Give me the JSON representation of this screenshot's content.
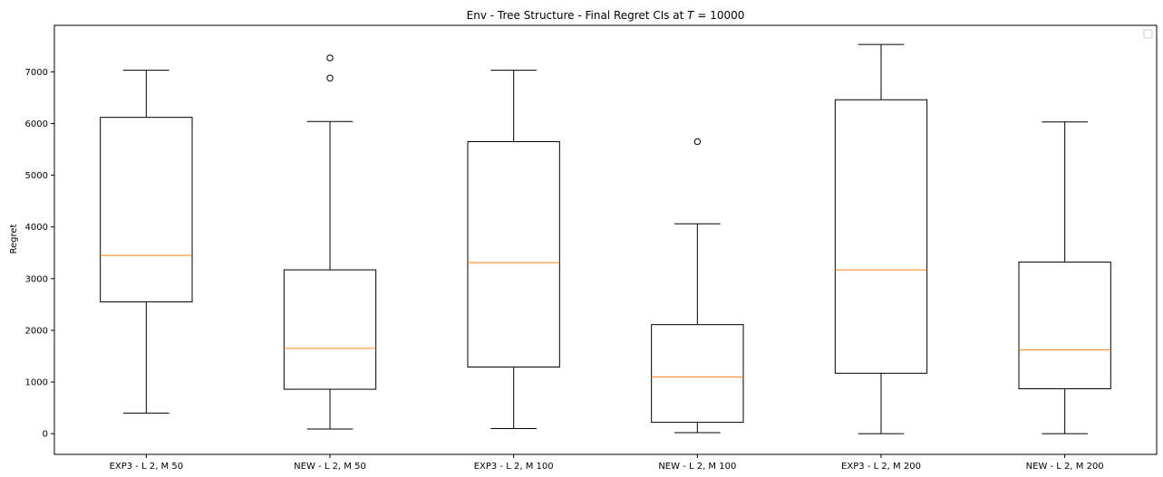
{
  "chart_data": {
    "type": "box",
    "title_prefix": "Env - Tree Structure - Final Regret CIs at ",
    "title_var": "T",
    "title_suffix": " = 10000",
    "xlabel": "",
    "ylabel": "Regret",
    "ylim": [
      -400,
      7900
    ],
    "yticks": [
      0,
      1000,
      2000,
      3000,
      4000,
      5000,
      6000,
      7000
    ],
    "legend": "top-right",
    "grid": false,
    "median_color": "#ff7f0e",
    "box_color": "#000000",
    "categories": [
      "EXP3 - L 2, M 50",
      "NEW - L 2, M 50",
      "EXP3 - L 2, M 100",
      "NEW - L 2, M 100",
      "EXP3 - L 2, M 200",
      "NEW - L 2, M 200"
    ],
    "boxes": [
      {
        "whisker_low": 400,
        "q1": 2550,
        "median": 3450,
        "q3": 6120,
        "whisker_high": 7030,
        "outliers": []
      },
      {
        "whisker_low": 90,
        "q1": 860,
        "median": 1650,
        "q3": 3170,
        "whisker_high": 6040,
        "outliers": [
          6880,
          7270
        ]
      },
      {
        "whisker_low": 100,
        "q1": 1290,
        "median": 3310,
        "q3": 5650,
        "whisker_high": 7030,
        "outliers": []
      },
      {
        "whisker_low": 20,
        "q1": 220,
        "median": 1100,
        "q3": 2110,
        "whisker_high": 4060,
        "outliers": [
          5650
        ]
      },
      {
        "whisker_low": 0,
        "q1": 1170,
        "median": 3170,
        "q3": 6460,
        "whisker_high": 7530,
        "outliers": []
      },
      {
        "whisker_low": 0,
        "q1": 870,
        "median": 1620,
        "q3": 3320,
        "whisker_high": 6030,
        "outliers": []
      }
    ]
  }
}
